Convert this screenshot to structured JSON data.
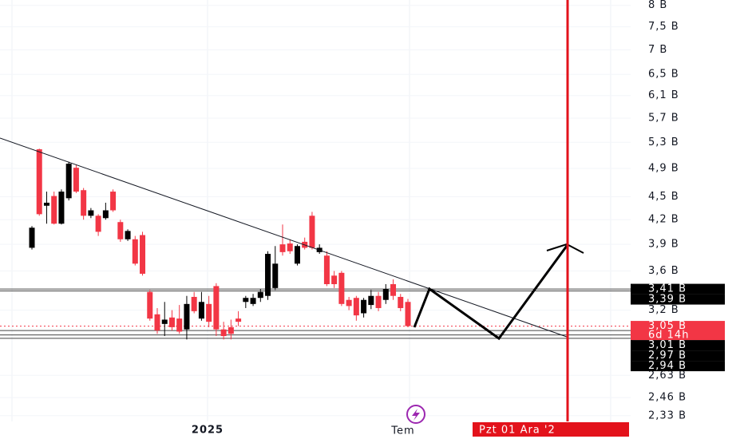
{
  "chart_data": {
    "type": "candlestick",
    "log_scale": true,
    "grid": true,
    "up_color": "#000000",
    "down_color": "#f23645",
    "open": [
      3.86,
      5.19,
      4.38,
      4.51,
      4.15,
      4.48,
      4.91,
      4.59,
      4.25,
      4.25,
      4.22,
      4.57,
      4.17,
      3.96,
      3.96,
      4.01,
      3.38,
      3.16,
      3.07,
      3.13,
      3.12,
      3.02,
      3.33,
      3.12,
      3.26,
      3.44,
      3.02,
      3.04,
      3.12,
      3.28,
      3.26,
      3.32,
      3.34,
      3.42,
      3.9,
      3.91,
      3.68,
      3.93,
      4.25,
      3.81,
      3.77,
      3.55,
      3.58,
      3.3,
      3.32,
      3.17,
      3.25,
      3.34,
      3.3,
      3.46,
      3.33,
      3.28
    ],
    "high": [
      4.12,
      5.2,
      4.57,
      4.57,
      4.6,
      5.0,
      4.95,
      4.62,
      4.35,
      4.27,
      4.42,
      4.6,
      4.2,
      4.08,
      4.0,
      4.05,
      3.4,
      3.22,
      3.28,
      3.2,
      3.25,
      3.34,
      3.38,
      3.38,
      3.34,
      3.47,
      3.09,
      3.11,
      3.19,
      3.34,
      3.36,
      3.41,
      3.82,
      3.88,
      4.14,
      3.96,
      3.9,
      3.98,
      4.3,
      3.9,
      3.82,
      3.6,
      3.6,
      3.33,
      3.34,
      3.32,
      3.4,
      3.38,
      3.46,
      3.51,
      3.36,
      3.31
    ],
    "low": [
      3.84,
      4.25,
      4.15,
      4.14,
      4.14,
      4.45,
      4.55,
      4.2,
      4.22,
      4.0,
      4.2,
      4.3,
      3.93,
      3.94,
      3.66,
      3.55,
      3.1,
      2.98,
      2.96,
      3.01,
      2.98,
      2.93,
      3.17,
      3.1,
      3.04,
      2.96,
      2.93,
      2.93,
      3.05,
      3.22,
      3.24,
      3.28,
      3.3,
      3.4,
      3.77,
      3.79,
      3.66,
      3.84,
      3.84,
      3.79,
      3.44,
      3.42,
      3.24,
      3.2,
      3.1,
      3.13,
      3.21,
      3.19,
      3.26,
      3.3,
      3.19,
      3.04
    ],
    "close": [
      4.1,
      4.27,
      4.42,
      4.15,
      4.57,
      4.97,
      4.57,
      4.25,
      4.32,
      4.05,
      4.32,
      4.32,
      3.96,
      4.06,
      3.68,
      3.57,
      3.12,
      3.01,
      3.11,
      3.04,
      3.0,
      3.26,
      3.19,
      3.28,
      3.09,
      3.02,
      2.96,
      2.98,
      3.09,
      3.32,
      3.32,
      3.38,
      3.79,
      3.68,
      3.81,
      3.82,
      3.88,
      3.86,
      3.86,
      3.86,
      3.46,
      3.46,
      3.26,
      3.24,
      3.15,
      3.3,
      3.34,
      3.22,
      3.41,
      3.34,
      3.22,
      3.05
    ],
    "ylim": [
      2.29,
      8.13
    ],
    "yticks": [
      {
        "value": 8,
        "label": "8 B"
      },
      {
        "value": 7.5,
        "label": "7,5 B"
      },
      {
        "value": 7,
        "label": "7 B"
      },
      {
        "value": 6.5,
        "label": "6,5 B"
      },
      {
        "value": 6.1,
        "label": "6,1 B"
      },
      {
        "value": 5.7,
        "label": "5,7 B"
      },
      {
        "value": 5.3,
        "label": "5,3 B"
      },
      {
        "value": 4.9,
        "label": "4,9 B"
      },
      {
        "value": 4.5,
        "label": "4,5 B"
      },
      {
        "value": 4.2,
        "label": "4,2 B"
      },
      {
        "value": 3.9,
        "label": "3,9 B"
      },
      {
        "value": 3.6,
        "label": "3,6 B"
      },
      {
        "value": 3.2,
        "label": "3,2 B"
      },
      {
        "value": 2.63,
        "label": "2,63 B"
      },
      {
        "value": 2.46,
        "label": "2,46 B"
      },
      {
        "value": 2.33,
        "label": "2,33 B"
      }
    ],
    "price_labels": [
      {
        "value": 3.41,
        "label": "3,41 B",
        "color": "#000000"
      },
      {
        "value": 3.39,
        "label": "3,39 B",
        "color": "#000000"
      },
      {
        "value": 3.05,
        "label": "3,05 B",
        "color": "#f23645",
        "countdown": "6d 14h"
      },
      {
        "value": 3.01,
        "label": "3,01 B",
        "color": "#000000"
      },
      {
        "value": 2.97,
        "label": "2,97 B",
        "color": "#000000"
      },
      {
        "value": 2.94,
        "label": "2,94 B",
        "color": "#000000"
      }
    ],
    "x_labels": [
      "2025",
      "Tem"
    ],
    "marker_date": "Pzt 01 Ara '2"
  }
}
